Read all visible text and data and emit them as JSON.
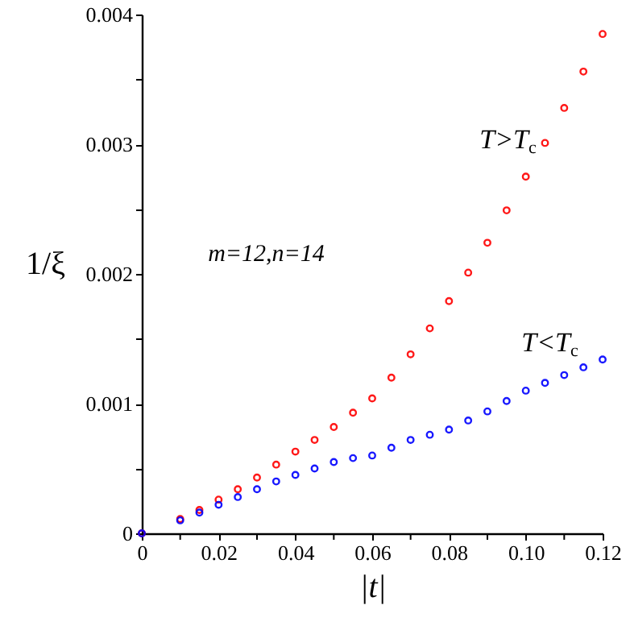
{
  "chart_data": {
    "type": "scatter",
    "xlabel": "|t|",
    "ylabel": "1/ξ",
    "annotations": [
      "m=12,n=14"
    ],
    "x": [
      0,
      0.01,
      0.015,
      0.02,
      0.025,
      0.03,
      0.035,
      0.04,
      0.045,
      0.05,
      0.055,
      0.06,
      0.065,
      0.07,
      0.075,
      0.08,
      0.085,
      0.09,
      0.095,
      0.1,
      0.105,
      0.11,
      0.115,
      0.12
    ],
    "series": [
      {
        "name": "T>T$_{c}$",
        "color": "#ff0000",
        "values": [
          0,
          0.00011,
          0.00018,
          0.00026,
          0.00034,
          0.00043,
          0.00053,
          0.00063,
          0.00072,
          0.00082,
          0.00093,
          0.00104,
          0.0012,
          0.00138,
          0.00158,
          0.00179,
          0.00201,
          0.00224,
          0.00249,
          0.00275,
          0.00301,
          0.00328,
          0.00356,
          0.00385
        ]
      },
      {
        "name": "T<T$_{c}$",
        "color": "#0000ff",
        "values": [
          0,
          0.0001,
          0.00016,
          0.00022,
          0.00028,
          0.00034,
          0.0004,
          0.00045,
          0.0005,
          0.00055,
          0.00058,
          0.0006,
          0.00066,
          0.00072,
          0.00076,
          0.0008,
          0.00087,
          0.00094,
          0.00102,
          0.0011,
          0.00116,
          0.00122,
          0.00128,
          0.00134
        ]
      }
    ],
    "xlim": [
      0,
      0.12
    ],
    "xticks": [
      0,
      {
        "value": 0.01,
        "label": null
      },
      0.02,
      {
        "value": 0.03,
        "label": null
      },
      0.04,
      {
        "value": 0.05,
        "label": null
      },
      0.06,
      {
        "value": 0.07,
        "label": null
      },
      0.08,
      {
        "value": 0.09,
        "label": null
      },
      {
        "value": 0.1,
        "label": "0.10"
      },
      {
        "value": 0.11,
        "label": null
      },
      0.12
    ],
    "ylim": [
      0,
      0.004
    ],
    "yticks": [
      0,
      {
        "value": 0.0005,
        "label": null
      },
      0.001,
      {
        "value": 0.0015,
        "label": null
      },
      0.002,
      {
        "value": 0.0025,
        "label": null
      },
      0.003,
      {
        "value": 0.0035,
        "label": null
      },
      0.004
    ],
    "marker": "circle",
    "grid": false
  }
}
